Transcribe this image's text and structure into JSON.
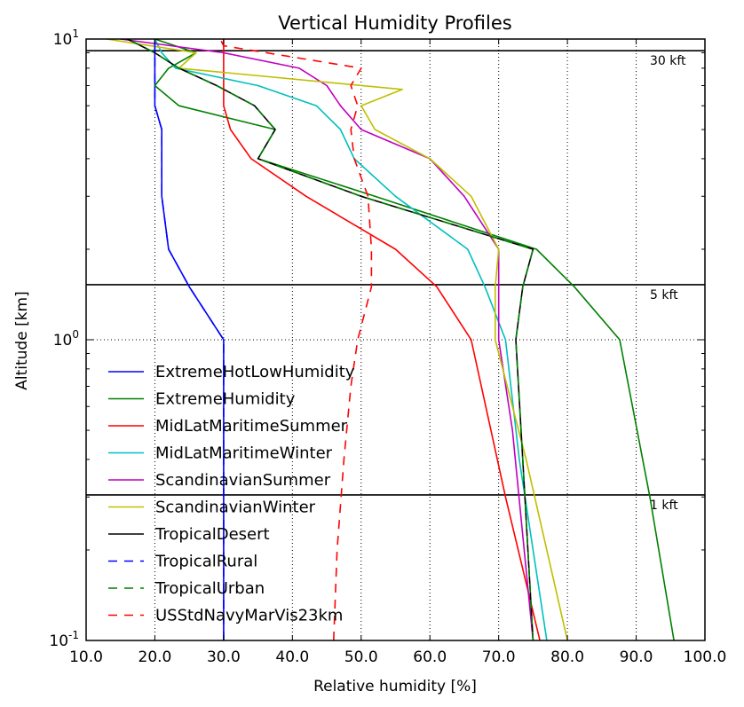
{
  "chart_data": {
    "type": "line",
    "title": "Vertical Humidity Profiles",
    "xlabel": "Relative humidity [%]",
    "ylabel": "Altitude [km]",
    "xlim": [
      10,
      100
    ],
    "ylim": [
      0.1,
      10
    ],
    "yscale": "log",
    "grid": true,
    "legend_position": "lower-left",
    "x_ticks": [
      "10.0",
      "20.0",
      "30.0",
      "40.0",
      "50.0",
      "60.0",
      "70.0",
      "80.0",
      "90.0",
      "100.0"
    ],
    "y_ticks": [
      {
        "value": 0.1,
        "mantissa": "10",
        "exponent": "-1"
      },
      {
        "value": 1,
        "mantissa": "10",
        "exponent": "0"
      },
      {
        "value": 10,
        "mantissa": "10",
        "exponent": "1"
      }
    ],
    "reference_lines": [
      {
        "altitude_km": 9.144,
        "label": "30 kft"
      },
      {
        "altitude_km": 1.524,
        "label": "5 kft"
      },
      {
        "altitude_km": 0.3048,
        "label": "1 kft"
      }
    ],
    "series": [
      {
        "name": "ExtremeHotLowHumidity",
        "color": "#0000ff",
        "dash": "solid",
        "points": [
          [
            30,
            0.1
          ],
          [
            30,
            0.2
          ],
          [
            30,
            0.5
          ],
          [
            30,
            1
          ],
          [
            25,
            1.5
          ],
          [
            22,
            2
          ],
          [
            21,
            3
          ],
          [
            21,
            4
          ],
          [
            21,
            5
          ],
          [
            20,
            6
          ],
          [
            20,
            7
          ],
          [
            20,
            8
          ],
          [
            20,
            9
          ],
          [
            20,
            10
          ]
        ]
      },
      {
        "name": "ExtremeHumidity",
        "color": "#008000",
        "dash": "solid",
        "points": [
          [
            95.5,
            0.1
          ],
          [
            92,
            0.3
          ],
          [
            87.6,
            1
          ],
          [
            81,
            1.5
          ],
          [
            75.5,
            2
          ],
          [
            52,
            3
          ],
          [
            35,
            4
          ],
          [
            37.5,
            5
          ],
          [
            23.5,
            6
          ],
          [
            20,
            7
          ],
          [
            22,
            8
          ],
          [
            26,
            9
          ],
          [
            20,
            10
          ]
        ]
      },
      {
        "name": "MidLatMaritimeSummer",
        "color": "#ff0000",
        "dash": "solid",
        "points": [
          [
            76,
            0.1
          ],
          [
            71,
            0.3
          ],
          [
            66,
            1
          ],
          [
            61,
            1.5
          ],
          [
            55,
            2
          ],
          [
            42,
            3
          ],
          [
            34,
            4
          ],
          [
            31,
            5
          ],
          [
            30,
            6
          ],
          [
            30,
            7
          ],
          [
            30,
            8
          ],
          [
            30,
            9
          ],
          [
            30,
            10
          ]
        ]
      },
      {
        "name": "MidLatMaritimeWinter",
        "color": "#00bfbf",
        "dash": "solid",
        "points": [
          [
            77,
            0.1
          ],
          [
            73,
            0.4
          ],
          [
            71,
            1
          ],
          [
            68,
            1.5
          ],
          [
            65.5,
            2
          ],
          [
            55,
            3
          ],
          [
            49,
            4
          ],
          [
            47,
            5
          ],
          [
            43.5,
            6
          ],
          [
            35,
            7
          ],
          [
            23,
            8
          ],
          [
            21,
            9
          ],
          [
            20,
            10
          ]
        ]
      },
      {
        "name": "ScandinavianSummer",
        "color": "#bf00bf",
        "dash": "solid",
        "points": [
          [
            75,
            0.1
          ],
          [
            72,
            0.5
          ],
          [
            70,
            1
          ],
          [
            70,
            1.5
          ],
          [
            70,
            2
          ],
          [
            65,
            3
          ],
          [
            60,
            4
          ],
          [
            50,
            5
          ],
          [
            47,
            6
          ],
          [
            45,
            7
          ],
          [
            41,
            8
          ],
          [
            30,
            9
          ],
          [
            15,
            10
          ]
        ]
      },
      {
        "name": "ScandinavianWinter",
        "color": "#bfbf00",
        "dash": "solid",
        "points": [
          [
            80,
            0.1
          ],
          [
            74,
            0.4
          ],
          [
            69.5,
            1
          ],
          [
            69.5,
            1.5
          ],
          [
            70,
            2
          ],
          [
            66,
            3
          ],
          [
            60,
            4
          ],
          [
            52,
            5
          ],
          [
            50,
            6
          ],
          [
            56,
            6.8
          ],
          [
            23.5,
            8
          ],
          [
            26,
            9
          ],
          [
            13,
            10
          ]
        ]
      },
      {
        "name": "TropicalDesert",
        "color": "#000000",
        "dash": "solid",
        "points": [
          [
            75,
            0.1
          ],
          [
            73.5,
            0.4
          ],
          [
            72.5,
            1
          ],
          [
            73.5,
            1.5
          ],
          [
            75,
            2
          ],
          [
            50,
            3
          ],
          [
            35,
            4
          ],
          [
            37.5,
            5
          ],
          [
            34.5,
            6
          ],
          [
            29,
            7
          ],
          [
            23.5,
            8
          ],
          [
            20,
            9
          ],
          [
            16,
            10
          ]
        ]
      },
      {
        "name": "TropicalRural",
        "color": "#0000ff",
        "dash": "dashed",
        "points": [
          [
            30,
            0.1
          ],
          [
            30,
            0.2
          ],
          [
            30,
            0.5
          ],
          [
            30,
            1
          ],
          [
            25,
            1.5
          ],
          [
            22,
            2
          ],
          [
            21,
            3
          ],
          [
            21,
            4
          ],
          [
            21,
            5
          ],
          [
            20,
            6
          ],
          [
            20,
            7
          ],
          [
            20,
            8
          ],
          [
            20,
            9
          ],
          [
            20,
            10
          ]
        ]
      },
      {
        "name": "TropicalUrban",
        "color": "#008000",
        "dash": "dashed",
        "points": [
          [
            75,
            0.1
          ],
          [
            73.5,
            0.4
          ],
          [
            72.5,
            1
          ],
          [
            73.5,
            1.5
          ],
          [
            75,
            2
          ],
          [
            50,
            3
          ],
          [
            35,
            4
          ],
          [
            37.5,
            5
          ],
          [
            34.5,
            6
          ],
          [
            29,
            7
          ],
          [
            23.5,
            8
          ],
          [
            20,
            9
          ],
          [
            16,
            10
          ]
        ]
      },
      {
        "name": "USStdNavyMarVis23km",
        "color": "#ff0000",
        "dash": "dashed",
        "points": [
          [
            46,
            0.1
          ],
          [
            46.5,
            0.2
          ],
          [
            47.5,
            0.4
          ],
          [
            48.5,
            0.7
          ],
          [
            49.5,
            1
          ],
          [
            51.5,
            1.5
          ],
          [
            51.5,
            2
          ],
          [
            51,
            3
          ],
          [
            49,
            4
          ],
          [
            48.5,
            5
          ],
          [
            49.5,
            6
          ],
          [
            48.5,
            7
          ],
          [
            50,
            8
          ],
          [
            30,
            9.5
          ],
          [
            29.5,
            10
          ]
        ]
      }
    ]
  }
}
